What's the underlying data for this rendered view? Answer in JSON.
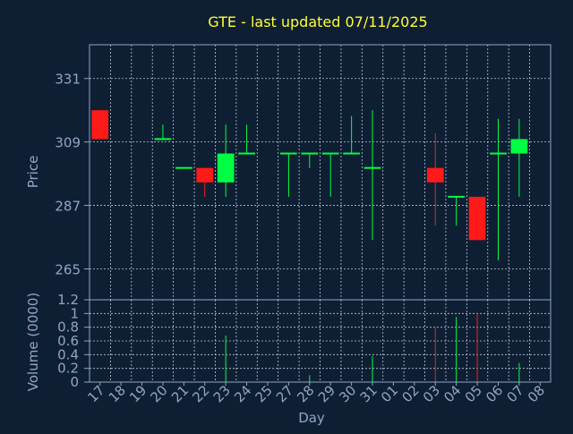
{
  "colors": {
    "background": "#0f1f33",
    "axis": "#8fa6c4",
    "grid": "#b9c6d6",
    "title": "#ffff33",
    "up": "#00ff44",
    "down": "#ff1a1a",
    "flat": "#00ff44"
  },
  "chart_data": [
    {
      "type": "candlestick",
      "title": "GTE - last updated 07/11/2025",
      "ylabel": "Price",
      "xlabel": "",
      "ylim": [
        254.3,
        342.7
      ],
      "yticks": [
        265,
        287,
        309,
        331
      ],
      "grid": true,
      "candles": [
        {
          "day": "17",
          "open": 320,
          "high": 320,
          "low": 310,
          "close": 310
        },
        {
          "day": "20",
          "open": 310,
          "high": 315,
          "low": 310,
          "close": 310
        },
        {
          "day": "21",
          "open": 300,
          "high": 300,
          "low": 300,
          "close": 300
        },
        {
          "day": "22",
          "open": 300,
          "high": 300,
          "low": 290,
          "close": 295
        },
        {
          "day": "23",
          "open": 295,
          "high": 315,
          "low": 290,
          "close": 305
        },
        {
          "day": "24",
          "open": 305,
          "high": 315,
          "low": 305,
          "close": 305
        },
        {
          "day": "27",
          "open": 305,
          "high": 305,
          "low": 290,
          "close": 305
        },
        {
          "day": "28",
          "open": 305,
          "high": 305,
          "low": 300,
          "close": 305
        },
        {
          "day": "29",
          "open": 305,
          "high": 305,
          "low": 290,
          "close": 305
        },
        {
          "day": "30",
          "open": 305,
          "high": 318,
          "low": 305,
          "close": 305
        },
        {
          "day": "31",
          "open": 300,
          "high": 320,
          "low": 275,
          "close": 300
        },
        {
          "day": "03",
          "open": 300,
          "high": 312,
          "low": 280,
          "close": 295
        },
        {
          "day": "04",
          "open": 290,
          "high": 290,
          "low": 280,
          "close": 290
        },
        {
          "day": "05",
          "open": 290,
          "high": 290,
          "low": 275,
          "close": 275
        },
        {
          "day": "06",
          "open": 305,
          "high": 317,
          "low": 268,
          "close": 305
        },
        {
          "day": "07",
          "open": 305,
          "high": 317,
          "low": 290,
          "close": 310
        }
      ]
    },
    {
      "type": "bar",
      "ylabel": "Volume (0000)",
      "xlabel": "Day",
      "ylim": [
        0,
        1.2
      ],
      "yticks": [
        0,
        0.2,
        0.4,
        0.6,
        0.8,
        1,
        1.2
      ],
      "grid": true,
      "categories": [
        "17",
        "18",
        "19",
        "20",
        "21",
        "22",
        "23",
        "24",
        "25",
        "27",
        "28",
        "29",
        "30",
        "31",
        "01",
        "02",
        "03",
        "04",
        "05",
        "06",
        "07",
        "08"
      ],
      "values": [
        {
          "day": "23",
          "value": 0.68,
          "dir": "up"
        },
        {
          "day": "28",
          "value": 0.1,
          "dir": "up"
        },
        {
          "day": "31",
          "value": 0.38,
          "dir": "up"
        },
        {
          "day": "03",
          "value": 0.8,
          "dir": "down"
        },
        {
          "day": "04",
          "value": 0.95,
          "dir": "up"
        },
        {
          "day": "05",
          "value": 1.0,
          "dir": "down"
        },
        {
          "day": "07",
          "value": 0.28,
          "dir": "up"
        }
      ]
    }
  ]
}
